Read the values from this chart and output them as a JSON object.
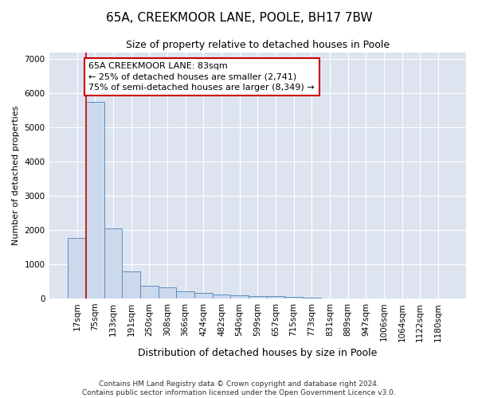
{
  "title": "65A, CREEKMOOR LANE, POOLE, BH17 7BW",
  "subtitle": "Size of property relative to detached houses in Poole",
  "xlabel": "Distribution of detached houses by size in Poole",
  "ylabel": "Number of detached properties",
  "footer_line1": "Contains HM Land Registry data © Crown copyright and database right 2024.",
  "footer_line2": "Contains public sector information licensed under the Open Government Licence v3.0.",
  "categories": [
    "17sqm",
    "75sqm",
    "133sqm",
    "191sqm",
    "250sqm",
    "308sqm",
    "366sqm",
    "424sqm",
    "482sqm",
    "540sqm",
    "599sqm",
    "657sqm",
    "715sqm",
    "773sqm",
    "831sqm",
    "889sqm",
    "947sqm",
    "1006sqm",
    "1064sqm",
    "1122sqm",
    "1180sqm"
  ],
  "values": [
    1780,
    5750,
    2050,
    800,
    380,
    330,
    220,
    155,
    120,
    100,
    80,
    60,
    55,
    15,
    8,
    5,
    4,
    3,
    3,
    3,
    3
  ],
  "bar_color": "#ccd9ec",
  "bar_edge_color": "#5a8fc0",
  "red_line_x": 0.5,
  "annotation_text": "65A CREEKMOOR LANE: 83sqm\n← 25% of detached houses are smaller (2,741)\n75% of semi-detached houses are larger (8,349) →",
  "annotation_box_color": "white",
  "annotation_border_color": "#cc0000",
  "ylim": [
    0,
    7200
  ],
  "yticks": [
    0,
    1000,
    2000,
    3000,
    4000,
    5000,
    6000,
    7000
  ],
  "background_color": "#dde4f0",
  "grid_color": "white",
  "title_fontsize": 11,
  "subtitle_fontsize": 9,
  "ylabel_fontsize": 8,
  "xlabel_fontsize": 9,
  "tick_fontsize": 7.5,
  "footer_fontsize": 6.5
}
